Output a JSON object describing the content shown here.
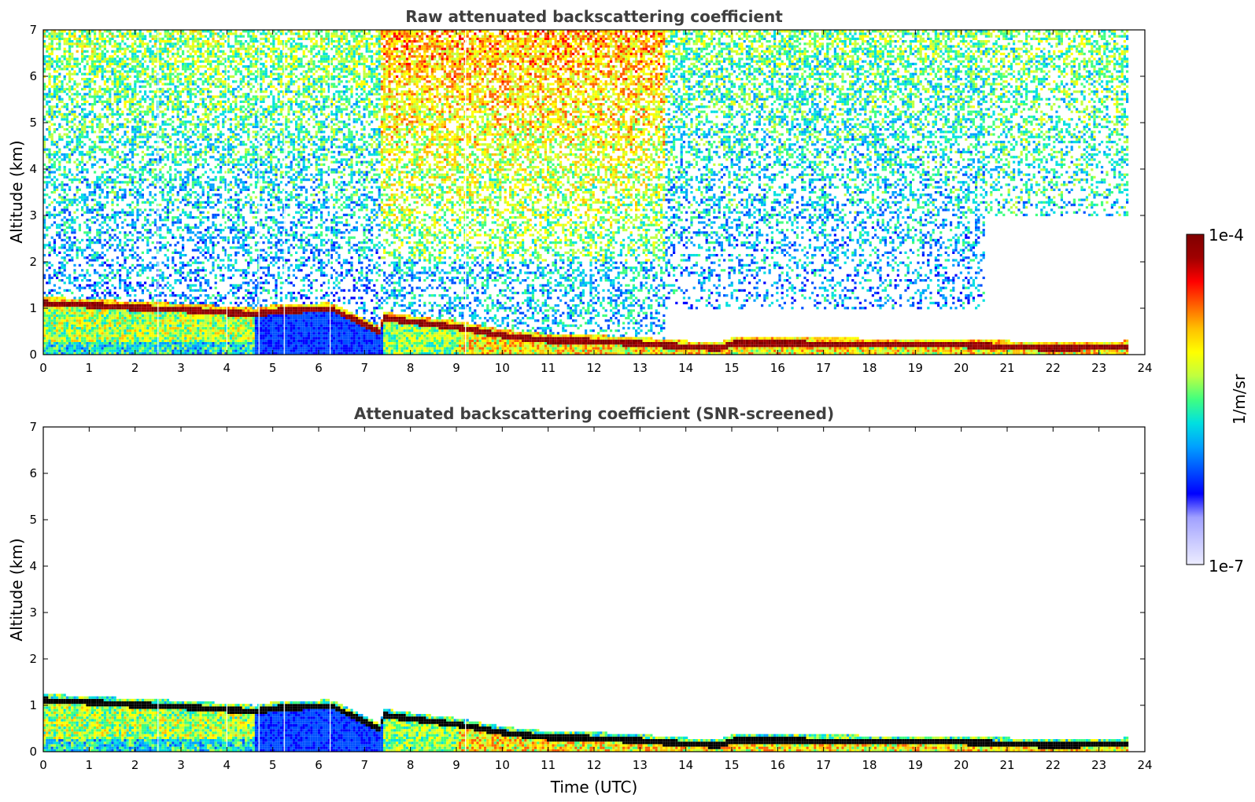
{
  "chart_data": [
    {
      "type": "heatmap",
      "title": "Raw attenuated backscattering coefficient",
      "xlabel": "",
      "ylabel": "Altitude (km)",
      "xlim": [
        0,
        24
      ],
      "ylim": [
        0,
        7
      ],
      "x_ticks": [
        "0",
        "1",
        "2",
        "3",
        "4",
        "5",
        "6",
        "7",
        "8",
        "9",
        "10",
        "11",
        "12",
        "13",
        "14",
        "15",
        "16",
        "17",
        "18",
        "19",
        "20",
        "21",
        "22",
        "23",
        "24"
      ],
      "y_ticks": [
        "0",
        "1",
        "2",
        "3",
        "4",
        "5",
        "6",
        "7"
      ],
      "data_extent_x": [
        0,
        23.6
      ],
      "layer_top_km": {
        "time": [
          0,
          1,
          2,
          3,
          4,
          4.6,
          5,
          6.2,
          6.3,
          7.3,
          7.4,
          8,
          9,
          10,
          11,
          12,
          13,
          14,
          14.7,
          15,
          16,
          17,
          18,
          19,
          20,
          21,
          22,
          23,
          23.6
        ],
        "height": [
          1.12,
          1.08,
          1.02,
          0.98,
          0.92,
          0.88,
          0.95,
          1.0,
          0.98,
          0.5,
          0.8,
          0.72,
          0.6,
          0.42,
          0.32,
          0.3,
          0.25,
          0.18,
          0.15,
          0.25,
          0.26,
          0.24,
          0.23,
          0.22,
          0.22,
          0.18,
          0.15,
          0.17,
          0.18
        ]
      },
      "vertical_gaps_time": [
        2.5,
        4.0,
        4.7,
        5.25,
        6.25,
        9.2
      ],
      "noise_region_notes": [
        {
          "time": [
            0,
            7.3
          ],
          "alt": [
            1.2,
            7
          ],
          "level": "low-mid"
        },
        {
          "time": [
            7.3,
            13.5
          ],
          "alt": [
            2,
            7
          ],
          "level": "high"
        },
        {
          "time": [
            13.5,
            20.5
          ],
          "alt": [
            1,
            7
          ],
          "level": "mid"
        },
        {
          "time": [
            20.5,
            23.6
          ],
          "alt": [
            3,
            7
          ],
          "level": "mid"
        }
      ]
    },
    {
      "type": "heatmap",
      "title": "Attenuated backscattering coefficient (SNR-screened)",
      "xlabel": "Time (UTC)",
      "ylabel": "Altitude (km)",
      "xlim": [
        0,
        24
      ],
      "ylim": [
        0,
        7
      ],
      "x_ticks": [
        "0",
        "1",
        "2",
        "3",
        "4",
        "5",
        "6",
        "7",
        "8",
        "9",
        "10",
        "11",
        "12",
        "13",
        "14",
        "15",
        "16",
        "17",
        "18",
        "19",
        "20",
        "21",
        "22",
        "23",
        "24"
      ],
      "y_ticks": [
        "0",
        "1",
        "2",
        "3",
        "4",
        "5",
        "6",
        "7"
      ],
      "data_extent_x": [
        0,
        23.6
      ]
    }
  ],
  "colorbar": {
    "label": "1/m/sr",
    "max_label": "1e-4",
    "min_label": "1e-7",
    "colors": [
      "#ececff",
      "#c8c8ff",
      "#a0a0ff",
      "#0000ff",
      "#0050ff",
      "#00a0ff",
      "#00e0e0",
      "#40ff80",
      "#c0ff40",
      "#ffff00",
      "#ffc000",
      "#ff6000",
      "#ff0000",
      "#a00000",
      "#800000"
    ]
  }
}
